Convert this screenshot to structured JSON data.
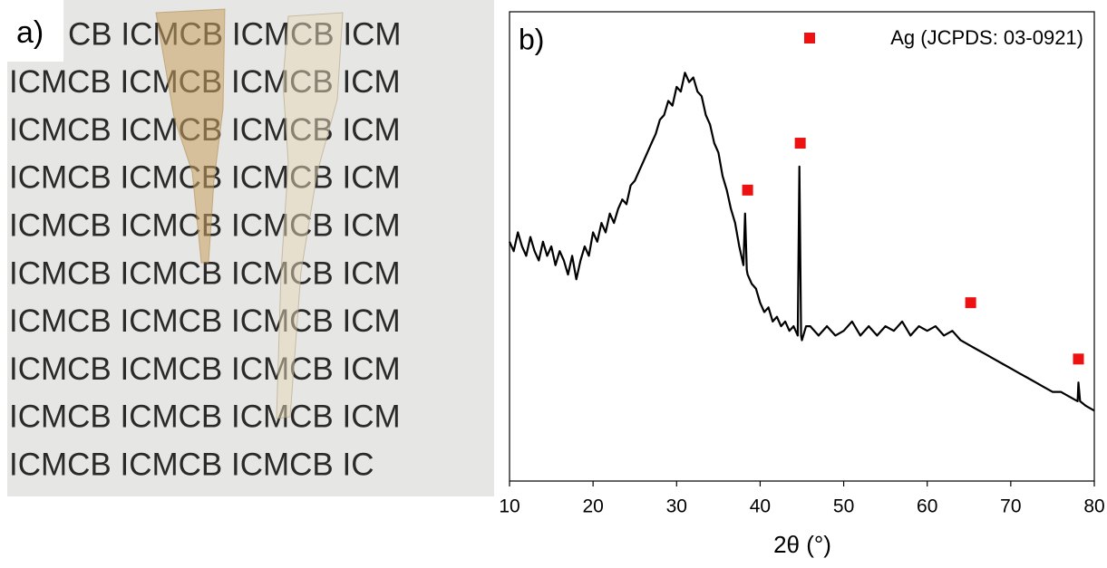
{
  "photo": {
    "label": "a)",
    "text_rows": [
      "CB ICMCB ICMCB ICM",
      "ICMCB ICMCB ICMCB ICM",
      "ICMCB ICMCB ICMCB ICM",
      "ICMCB ICMCB ICMCB ICM",
      "ICMCB ICMCB ICMCB ICM",
      "ICMCB ICMCB ICMCB ICM",
      "ICMCB ICMCB ICMCB ICM",
      "ICMCB ICMCB ICMCB ICM",
      "ICMCB ICMCB ICMCB ICM",
      "ICMCB ICMCB ICMCB IC"
    ]
  },
  "chart_data": {
    "type": "line",
    "panel_label": "b)",
    "x_label": "2θ (°)",
    "x": [
      10,
      10.5,
      11,
      11.5,
      12,
      12.5,
      13,
      13.5,
      14,
      14.5,
      15,
      15.5,
      16,
      16.5,
      17,
      17.5,
      18,
      18.5,
      19,
      19.5,
      20,
      20.5,
      21,
      21.5,
      22,
      22.5,
      23,
      23.5,
      24,
      24.5,
      25,
      25.5,
      26,
      26.5,
      27,
      27.5,
      28,
      28.5,
      29,
      29.5,
      30,
      30.5,
      31,
      31.5,
      32,
      32.5,
      33,
      33.5,
      34,
      34.5,
      35,
      35.5,
      36,
      36.5,
      37,
      37.5,
      38,
      38.2,
      38.4,
      38.5,
      39,
      39.5,
      40,
      40.5,
      41,
      41.5,
      42,
      42.5,
      43,
      43.5,
      44,
      44.5,
      44.7,
      44.9,
      45,
      45.5,
      46,
      47,
      48,
      49,
      50,
      51,
      52,
      53,
      54,
      55,
      56,
      57,
      58,
      59,
      60,
      61,
      62,
      63,
      64,
      65,
      66,
      67,
      68,
      69,
      70,
      71,
      72,
      73,
      74,
      75,
      76,
      77,
      78,
      78.1,
      78.3,
      79,
      80
    ],
    "series": [
      {
        "color": "#000000",
        "values": [
          51,
          49,
          53,
          50,
          48,
          52,
          49,
          47,
          51,
          48,
          50,
          46,
          49,
          47,
          44,
          48,
          43,
          47,
          50,
          48,
          53,
          51,
          55,
          53,
          57,
          55,
          58,
          60,
          59,
          63,
          64,
          66,
          68,
          70,
          72,
          74,
          77,
          78,
          81,
          80,
          84,
          83,
          87,
          85,
          86,
          83,
          82,
          78,
          76,
          72,
          70,
          65,
          62,
          58,
          55,
          50,
          46,
          57,
          45,
          44,
          42,
          41,
          38,
          36,
          37,
          34,
          35,
          33,
          34,
          32,
          33,
          31,
          67,
          31,
          30,
          33,
          33,
          31,
          33,
          31,
          32,
          34,
          31,
          33,
          31,
          33,
          32,
          34,
          31,
          33,
          32,
          33,
          31,
          32,
          30,
          29,
          28,
          27,
          26,
          25,
          24,
          23,
          22,
          21,
          20,
          19,
          19,
          18,
          17,
          21,
          17,
          16,
          15
        ]
      },
      {
        "name": "Ag (JCPDS: 03-0921)",
        "color": "#ee1111",
        "marker": "square",
        "x": [
          38.5,
          44.8,
          65.2,
          78.1
        ],
        "values": [
          62,
          72,
          38,
          26
        ]
      }
    ],
    "xlim": [
      10,
      80
    ],
    "xticks": [
      10,
      20,
      30,
      40,
      50,
      60,
      70,
      80
    ],
    "ylim": [
      0,
      100
    ],
    "legend": "top-right"
  }
}
